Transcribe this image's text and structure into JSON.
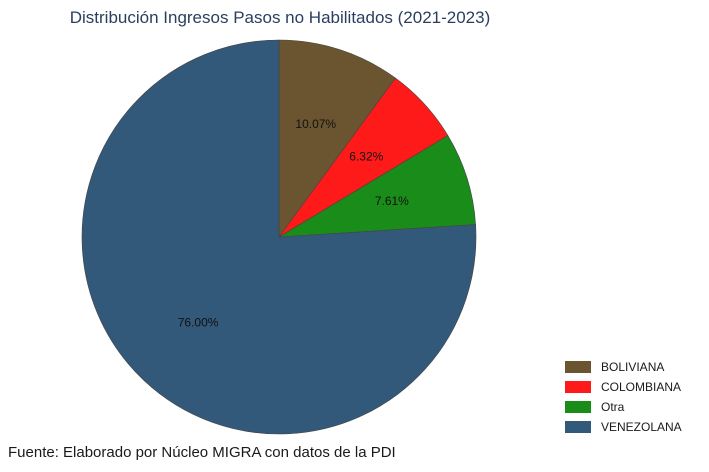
{
  "chart_data": {
    "type": "pie",
    "title": "Distribución Ingresos Pasos no Habilitados (2021-2023)",
    "source": "Fuente: Elaborado por Núcleo MIGRA con datos de la PDI",
    "legend_position": "bottom-right",
    "categories": [
      "BOLIVIANA",
      "COLOMBIANA",
      "Otra",
      "VENEZOLANA"
    ],
    "values": [
      10.07,
      6.32,
      7.61,
      76.0
    ],
    "labels": [
      "10.07%",
      "6.32%",
      "7.61%",
      "76.00%"
    ],
    "colors": [
      "#6b5530",
      "#ff1a1a",
      "#1a8c1a",
      "#32587a"
    ],
    "start": "12 o'clock",
    "direction": "clockwise"
  }
}
